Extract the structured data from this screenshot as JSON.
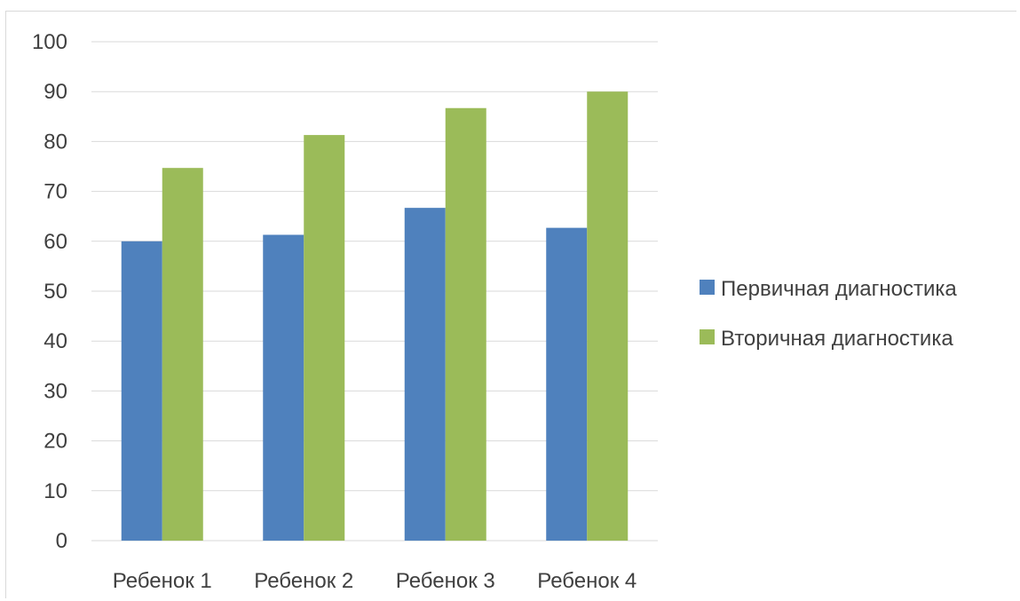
{
  "chart_data": {
    "type": "bar",
    "title": "",
    "xlabel": "",
    "ylabel": "",
    "categories": [
      "Ребенок 1",
      "Ребенок 2",
      "Ребенок 3",
      "Ребенок 4"
    ],
    "series": [
      {
        "name": "Первичная диагностика",
        "color": "#4f81bd",
        "values": [
          60,
          61.3,
          66.7,
          62.7
        ]
      },
      {
        "name": "Вторичная диагностика",
        "color": "#9bbb59",
        "values": [
          74.7,
          81.3,
          86.7,
          90
        ]
      }
    ],
    "ylim": [
      0,
      100
    ],
    "yticks": [
      0,
      10,
      20,
      30,
      40,
      50,
      60,
      70,
      80,
      90,
      100
    ],
    "grid": true,
    "legend_position": "right"
  }
}
